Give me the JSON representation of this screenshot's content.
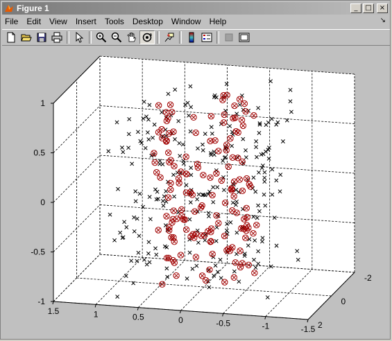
{
  "window": {
    "title": "Figure 1"
  },
  "title_buttons": {
    "minimize": "_",
    "maximize": "□",
    "close": "×"
  },
  "menu": {
    "items": [
      "File",
      "Edit",
      "View",
      "Insert",
      "Tools",
      "Desktop",
      "Window",
      "Help"
    ],
    "dock": "↘"
  },
  "toolbar": {
    "tools": [
      "new-figure-icon",
      "open-file-icon",
      "save-icon",
      "print-icon",
      "edit-plot-arrow-icon",
      "zoom-in-icon",
      "zoom-out-icon",
      "pan-hand-icon",
      "rotate-3d-icon",
      "data-cursor-icon",
      "colorbar-icon",
      "legend-icon",
      "hide-plot-tools-icon",
      "show-plot-tools-icon"
    ]
  },
  "colors": {
    "circle_marker": "#a00000",
    "cross_marker": "#000000",
    "axes_bg": "#ffffff",
    "figure_bg": "#c0c0c0"
  },
  "chart_data": {
    "type": "scatter",
    "dimensions": 3,
    "grid": true,
    "xlim": [
      -2,
      2
    ],
    "ylim": [
      -1.5,
      1.5
    ],
    "zlim": [
      -1,
      1
    ],
    "xticks": [
      "-2",
      "0",
      "2"
    ],
    "yticks": [
      "1.5",
      "1",
      "0.5",
      "0",
      "-0.5",
      "-1",
      "-1.5"
    ],
    "zticks": [
      "1",
      "0.5",
      "0",
      "-0.5",
      "-1"
    ],
    "series": [
      {
        "marker": "cross",
        "color": "#000000",
        "seed": 11,
        "count": 260
      },
      {
        "marker": "circle-cross",
        "color": "#a00000",
        "seed": 29,
        "count": 150
      }
    ]
  }
}
